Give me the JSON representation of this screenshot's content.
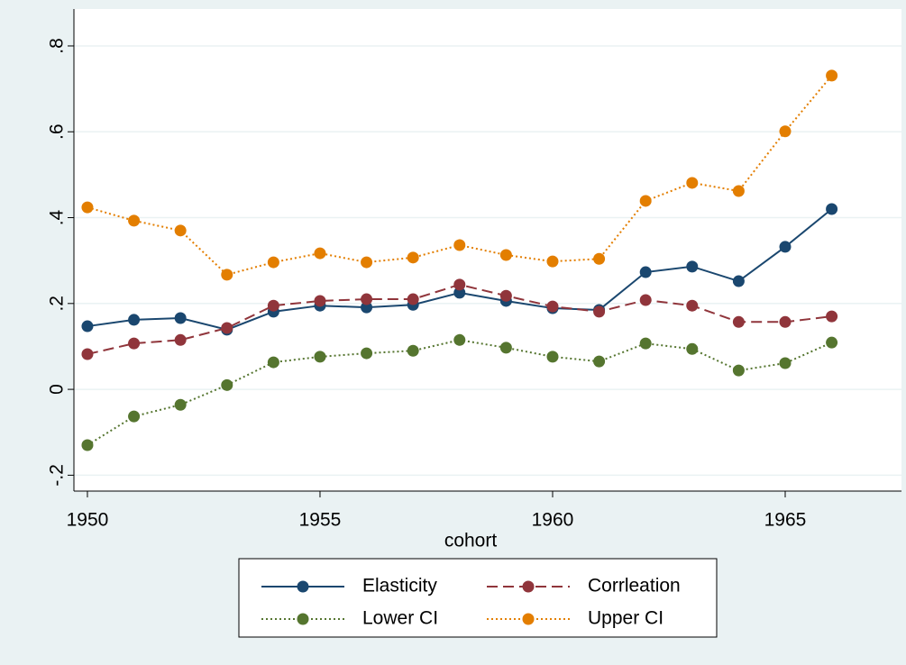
{
  "chart_data": {
    "type": "line",
    "x_label": "cohort",
    "x": [
      1950,
      1951,
      1952,
      1953,
      1954,
      1955,
      1956,
      1957,
      1958,
      1959,
      1960,
      1961,
      1962,
      1963,
      1964,
      1965,
      1966
    ],
    "series": [
      {
        "name": "Elasticity",
        "color": "#1a476f",
        "style": "solid",
        "values": [
          0.147,
          0.162,
          0.166,
          0.139,
          0.181,
          0.195,
          0.191,
          0.197,
          0.225,
          0.206,
          0.189,
          0.185,
          0.273,
          0.286,
          0.252,
          0.332,
          0.42
        ]
      },
      {
        "name": "Corrleation",
        "color": "#90353b",
        "style": "dashed",
        "values": [
          0.082,
          0.107,
          0.115,
          0.143,
          0.195,
          0.206,
          0.21,
          0.21,
          0.244,
          0.218,
          0.193,
          0.181,
          0.208,
          0.195,
          0.157,
          0.157,
          0.17
        ]
      },
      {
        "name": "Lower CI",
        "color": "#55752f",
        "style": "dotted",
        "values": [
          -0.13,
          -0.063,
          -0.036,
          0.01,
          0.063,
          0.076,
          0.084,
          0.09,
          0.115,
          0.097,
          0.076,
          0.065,
          0.107,
          0.094,
          0.044,
          0.061,
          0.109
        ]
      },
      {
        "name": "Upper CI",
        "color": "#e37e00",
        "style": "dotted",
        "values": [
          0.424,
          0.393,
          0.37,
          0.267,
          0.296,
          0.317,
          0.296,
          0.307,
          0.336,
          0.313,
          0.298,
          0.304,
          0.439,
          0.481,
          0.462,
          0.601,
          0.731
        ]
      }
    ],
    "xlim": [
      1949.71,
      1967.5
    ],
    "xticks": [
      1950,
      1955,
      1960,
      1965
    ],
    "ylim": [
      -0.237,
      0.886
    ],
    "yticks": [
      {
        "value": -0.2,
        "label": "-.2"
      },
      0,
      {
        "value": 0.2,
        "label": ".2"
      },
      {
        "value": 0.4,
        "label": ".4"
      },
      {
        "value": 0.6,
        "label": ".6"
      },
      {
        "value": 0.8,
        "label": ".8"
      }
    ],
    "grid": true,
    "legend": "bottom"
  }
}
